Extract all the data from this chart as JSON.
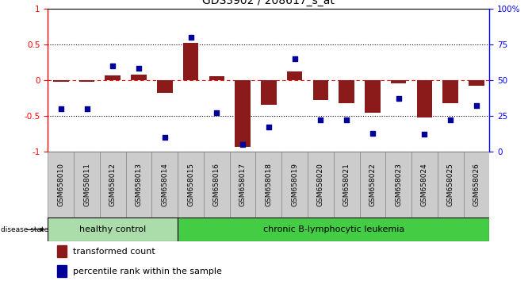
{
  "title": "GDS3902 / 208617_s_at",
  "samples": [
    "GSM658010",
    "GSM658011",
    "GSM658012",
    "GSM658013",
    "GSM658014",
    "GSM658015",
    "GSM658016",
    "GSM658017",
    "GSM658018",
    "GSM658019",
    "GSM658020",
    "GSM658021",
    "GSM658022",
    "GSM658023",
    "GSM658024",
    "GSM658025",
    "GSM658026"
  ],
  "transformed_count": [
    -0.02,
    -0.02,
    0.07,
    0.08,
    -0.18,
    0.52,
    0.05,
    -0.93,
    -0.35,
    0.12,
    -0.28,
    -0.32,
    -0.45,
    -0.05,
    -0.52,
    -0.32,
    -0.08
  ],
  "percentile_rank": [
    30,
    30,
    60,
    58,
    10,
    80,
    27,
    5,
    17,
    65,
    22,
    22,
    13,
    37,
    12,
    22,
    32
  ],
  "healthy_control_count": 5,
  "group_label_hc": "healthy control",
  "group_label_cll": "chronic B-lymphocytic leukemia",
  "group_color_hc": "#aaddaa",
  "group_color_cll": "#44cc44",
  "bar_color": "#8B1A1A",
  "dot_color": "#000099",
  "left_ylim": [
    -1.0,
    1.0
  ],
  "right_ylim": [
    0,
    100
  ],
  "left_yticks": [
    -1.0,
    -0.5,
    0.0,
    0.5,
    1.0
  ],
  "left_yticklabels": [
    "-1",
    "-0.5",
    "0",
    "0.5",
    "1"
  ],
  "right_yticks": [
    0,
    25,
    50,
    75,
    100
  ],
  "right_yticklabels": [
    "0",
    "25",
    "50",
    "75",
    "100%"
  ],
  "background_color": "#ffffff",
  "legend_items": [
    "transformed count",
    "percentile rank within the sample"
  ],
  "legend_colors": [
    "#8B1A1A",
    "#000099"
  ],
  "sample_label_bg": "#cccccc",
  "title_fontsize": 10,
  "tick_fontsize": 7.5,
  "label_fontsize": 8
}
